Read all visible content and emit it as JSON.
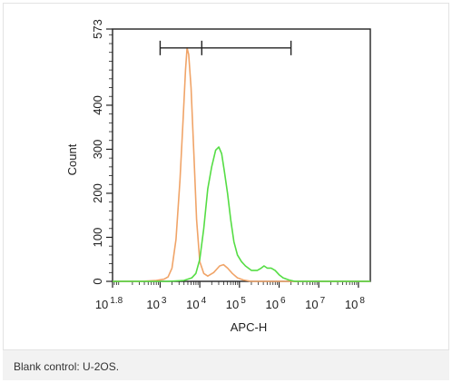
{
  "caption": "Blank control: U-2OS.",
  "colors": {
    "control": "#f0a468",
    "stained": "#55dd44",
    "axis": "#222222"
  },
  "chart_data": {
    "type": "line",
    "title": "",
    "xlabel": "APC-H",
    "ylabel": "Count",
    "xscale": "log",
    "xlim": [
      1.8,
      8.3
    ],
    "ylim": [
      0,
      573
    ],
    "y_ticks": [
      {
        "value": 0,
        "label": "0"
      },
      {
        "value": 100,
        "label": "100"
      },
      {
        "value": 200,
        "label": "200"
      },
      {
        "value": 300,
        "label": "300"
      },
      {
        "value": 400,
        "label": "400"
      },
      {
        "value": 573,
        "label": "573"
      }
    ],
    "x_ticks": [
      {
        "exp": 1.8,
        "base": "10",
        "sup": "1.8"
      },
      {
        "exp": 3,
        "base": "10",
        "sup": "3"
      },
      {
        "exp": 4,
        "base": "10",
        "sup": "4"
      },
      {
        "exp": 5,
        "base": "10",
        "sup": "5"
      },
      {
        "exp": 6,
        "base": "10",
        "sup": "6"
      },
      {
        "exp": 7,
        "base": "10",
        "sup": "7"
      },
      {
        "exp": 8,
        "base": "10",
        "sup": "8"
      }
    ],
    "gate": {
      "start": 3.0,
      "mid": 4.05,
      "end": 6.3,
      "count": 530
    },
    "grid": false,
    "legend": "none",
    "series": [
      {
        "color": "#f0a468",
        "points": [
          [
            1.8,
            0
          ],
          [
            2.5,
            0
          ],
          [
            2.9,
            2
          ],
          [
            3.1,
            5
          ],
          [
            3.2,
            10
          ],
          [
            3.3,
            30
          ],
          [
            3.4,
            95
          ],
          [
            3.5,
            230
          ],
          [
            3.58,
            370
          ],
          [
            3.64,
            480
          ],
          [
            3.68,
            530
          ],
          [
            3.72,
            515
          ],
          [
            3.78,
            440
          ],
          [
            3.85,
            290
          ],
          [
            3.92,
            140
          ],
          [
            4.0,
            45
          ],
          [
            4.1,
            18
          ],
          [
            4.2,
            12
          ],
          [
            4.35,
            20
          ],
          [
            4.5,
            35
          ],
          [
            4.6,
            38
          ],
          [
            4.7,
            30
          ],
          [
            4.82,
            18
          ],
          [
            4.95,
            8
          ],
          [
            5.1,
            3
          ],
          [
            5.3,
            0
          ],
          [
            8.3,
            0
          ]
        ]
      },
      {
        "color": "#55dd44",
        "points": [
          [
            1.8,
            0
          ],
          [
            3.2,
            0
          ],
          [
            3.6,
            2
          ],
          [
            3.8,
            8
          ],
          [
            3.9,
            18
          ],
          [
            4.0,
            50
          ],
          [
            4.1,
            120
          ],
          [
            4.2,
            210
          ],
          [
            4.3,
            260
          ],
          [
            4.4,
            298
          ],
          [
            4.48,
            305
          ],
          [
            4.55,
            290
          ],
          [
            4.62,
            250
          ],
          [
            4.7,
            200
          ],
          [
            4.78,
            140
          ],
          [
            4.86,
            90
          ],
          [
            4.95,
            60
          ],
          [
            5.05,
            45
          ],
          [
            5.15,
            35
          ],
          [
            5.3,
            25
          ],
          [
            5.45,
            25
          ],
          [
            5.55,
            30
          ],
          [
            5.62,
            35
          ],
          [
            5.7,
            30
          ],
          [
            5.8,
            30
          ],
          [
            5.9,
            25
          ],
          [
            6.0,
            15
          ],
          [
            6.1,
            8
          ],
          [
            6.25,
            3
          ],
          [
            6.4,
            0
          ],
          [
            8.3,
            0
          ]
        ]
      }
    ]
  }
}
